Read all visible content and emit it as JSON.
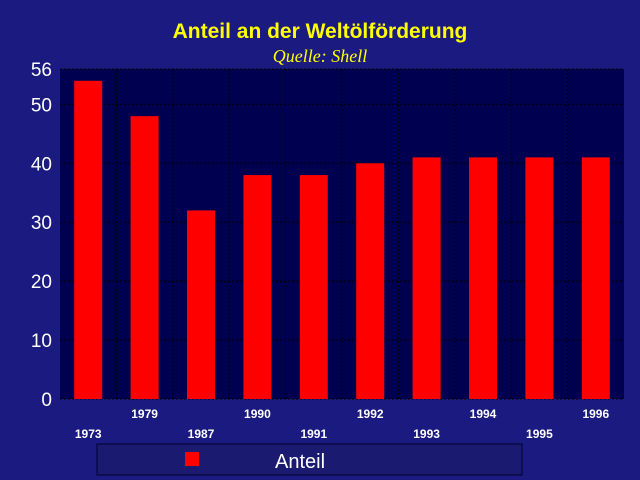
{
  "chart_data": {
    "type": "bar",
    "title": "Anteil an der Weltölförderung",
    "subtitle": "Quelle: Shell",
    "categories": [
      "1973",
      "1979",
      "1987",
      "1990",
      "1991",
      "1992",
      "1993",
      "1994",
      "1995",
      "1996"
    ],
    "series": [
      {
        "name": "Anteil",
        "values": [
          54,
          48,
          32,
          38,
          38,
          40,
          41,
          41,
          41,
          41
        ]
      }
    ],
    "yticks": [
      "0",
      "10",
      "20",
      "30",
      "40",
      "50",
      "56"
    ],
    "ylim": [
      0,
      56
    ],
    "grid": true,
    "legend_position": "bottom",
    "colors": {
      "background": "#1a1a80",
      "plot_area": "#000050",
      "bar": "#ff0000",
      "title": "#ffff00",
      "text": "#ffffff",
      "grid": "#000000"
    }
  }
}
